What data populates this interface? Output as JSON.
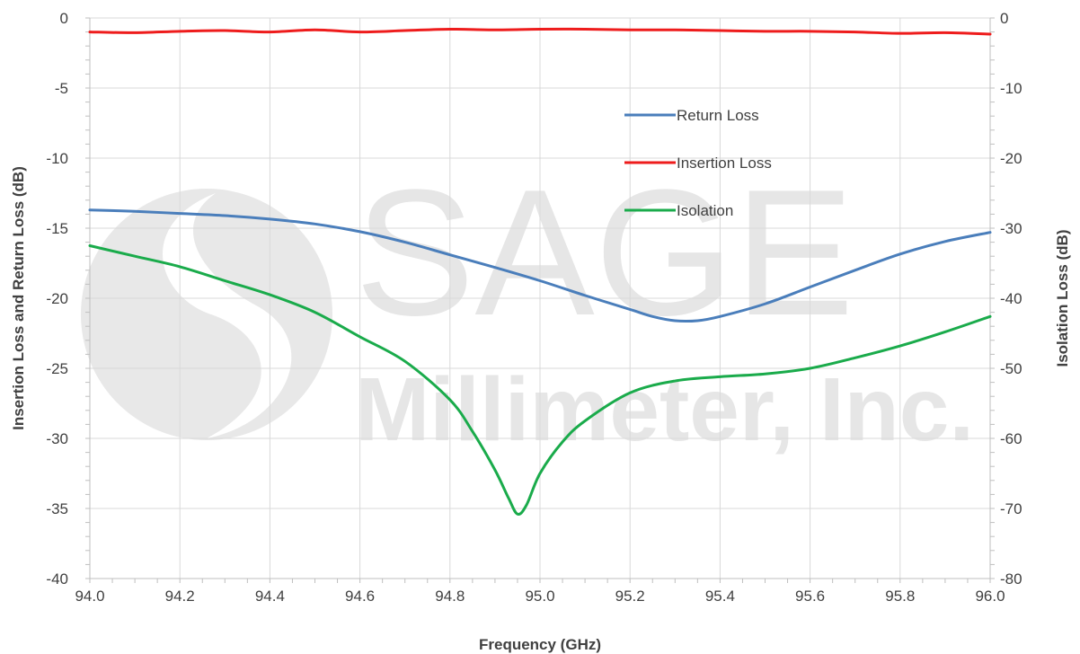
{
  "watermark": {
    "line1": "SAGE",
    "line2": "Millimeter, Inc."
  },
  "chart_data": {
    "type": "line",
    "xlabel": "Frequency (GHz)",
    "ylabel_left": "Insertion Loss and Return Loss (dB)",
    "ylabel_right": "Isolation Loss (dB)",
    "xlim": [
      94.0,
      96.0
    ],
    "ylim_left": [
      -40,
      0
    ],
    "ylim_right": [
      -80,
      0
    ],
    "x_ticks": [
      "94.0",
      "94.2",
      "94.4",
      "94.6",
      "94.8",
      "95.0",
      "95.2",
      "95.4",
      "95.6",
      "95.8",
      "96.0"
    ],
    "y_ticks_left": [
      "0",
      "-5",
      "-10",
      "-15",
      "-20",
      "-25",
      "-30",
      "-35",
      "-40"
    ],
    "y_ticks_right": [
      "0",
      "-10",
      "-20",
      "-30",
      "-40",
      "-50",
      "-60",
      "-70",
      "-80"
    ],
    "grid": true,
    "legend_position": "upper-center-right",
    "series": [
      {
        "name": "Return Loss",
        "axis": "left",
        "color": "#4a7ebb",
        "x": [
          94.0,
          94.1,
          94.2,
          94.3,
          94.4,
          94.5,
          94.6,
          94.7,
          94.8,
          94.9,
          95.0,
          95.1,
          95.2,
          95.25,
          95.3,
          95.35,
          95.4,
          95.5,
          95.6,
          95.7,
          95.8,
          95.9,
          96.0
        ],
        "y": [
          -13.7,
          -13.8,
          -13.95,
          -14.1,
          -14.35,
          -14.7,
          -15.25,
          -16.0,
          -16.9,
          -17.8,
          -18.75,
          -19.8,
          -20.8,
          -21.3,
          -21.6,
          -21.6,
          -21.3,
          -20.4,
          -19.2,
          -18.0,
          -16.85,
          -15.95,
          -15.3
        ]
      },
      {
        "name": "Insertion Loss",
        "axis": "left",
        "color": "#ee1c1c",
        "x": [
          94.0,
          94.1,
          94.2,
          94.3,
          94.4,
          94.5,
          94.6,
          94.7,
          94.8,
          94.9,
          95.0,
          95.1,
          95.2,
          95.3,
          95.4,
          95.5,
          95.6,
          95.7,
          95.8,
          95.9,
          96.0
        ],
        "y": [
          -1.0,
          -1.05,
          -0.95,
          -0.9,
          -1.0,
          -0.85,
          -1.0,
          -0.9,
          -0.8,
          -0.85,
          -0.8,
          -0.8,
          -0.85,
          -0.85,
          -0.9,
          -0.95,
          -0.95,
          -1.0,
          -1.1,
          -1.05,
          -1.15
        ]
      },
      {
        "name": "Isolation",
        "axis": "right",
        "color": "#1aab4b",
        "x": [
          94.0,
          94.1,
          94.2,
          94.3,
          94.4,
          94.5,
          94.6,
          94.7,
          94.8,
          94.85,
          94.9,
          94.93,
          94.95,
          94.97,
          95.0,
          95.05,
          95.1,
          95.2,
          95.3,
          95.4,
          95.5,
          95.6,
          95.7,
          95.8,
          95.9,
          96.0
        ],
        "y": [
          -32.5,
          -34.0,
          -35.5,
          -37.5,
          -39.5,
          -42.0,
          -45.5,
          -49.0,
          -54.5,
          -59.0,
          -64.5,
          -68.5,
          -70.8,
          -69.5,
          -65.0,
          -60.5,
          -57.5,
          -53.5,
          -51.8,
          -51.2,
          -50.8,
          -50.0,
          -48.5,
          -46.8,
          -44.8,
          -42.6
        ]
      }
    ]
  }
}
